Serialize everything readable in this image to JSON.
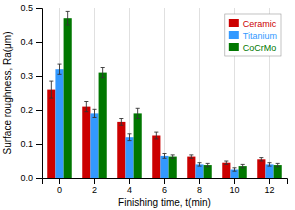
{
  "chart_data": {
    "type": "bar",
    "xlabel": "Finishing time, t(min)",
    "ylabel": "Surface roughness, Ra(μm)",
    "categories": [
      "0",
      "2",
      "4",
      "6",
      "8",
      "10",
      "12"
    ],
    "series": [
      {
        "name": "Ceramic",
        "color": "#cc0000",
        "values": [
          0.26,
          0.21,
          0.165,
          0.125,
          0.063,
          0.045,
          0.055
        ],
        "errors": [
          0.025,
          0.015,
          0.01,
          0.01,
          0.005,
          0.005,
          0.005
        ]
      },
      {
        "name": "Titanium",
        "color": "#3399ff",
        "values": [
          0.32,
          0.19,
          0.12,
          0.065,
          0.04,
          0.025,
          0.04
        ],
        "errors": [
          0.015,
          0.012,
          0.01,
          0.007,
          0.005,
          0.005,
          0.005
        ]
      },
      {
        "name": "CoCrMo",
        "color": "#007700",
        "values": [
          0.47,
          0.31,
          0.19,
          0.063,
          0.038,
          0.035,
          0.038
        ],
        "errors": [
          0.02,
          0.015,
          0.015,
          0.005,
          0.005,
          0.005,
          0.005
        ]
      }
    ],
    "ylim": [
      0,
      0.5
    ],
    "yticks": [
      {
        "value": 0,
        "label": "0.0"
      },
      0.1,
      0.2,
      0.3,
      0.4,
      0.5
    ],
    "grid": true,
    "legend": "upper right"
  }
}
